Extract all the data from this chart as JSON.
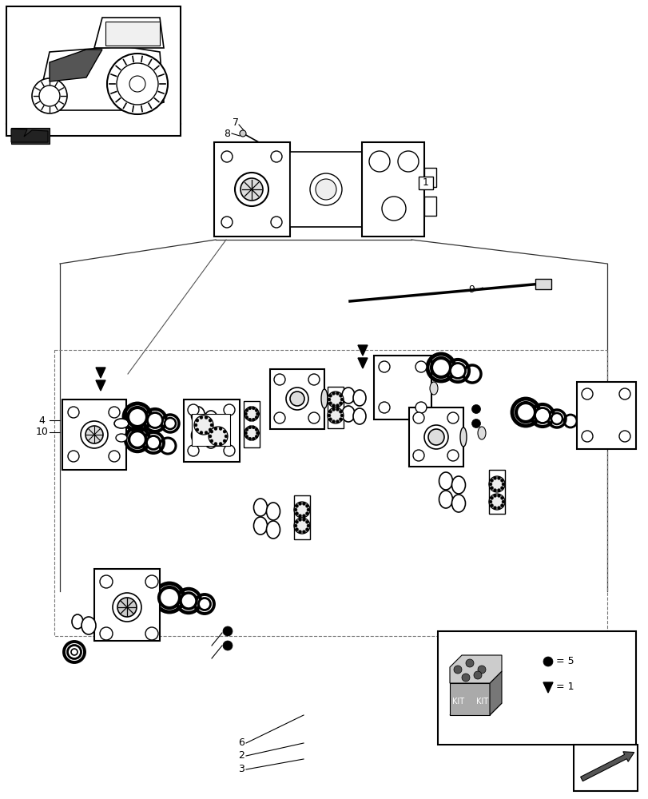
{
  "bg_color": "#ffffff",
  "line_color": "#000000",
  "gray_color": "#888888",
  "dark_gray": "#444444",
  "light_gray": "#dddddd"
}
